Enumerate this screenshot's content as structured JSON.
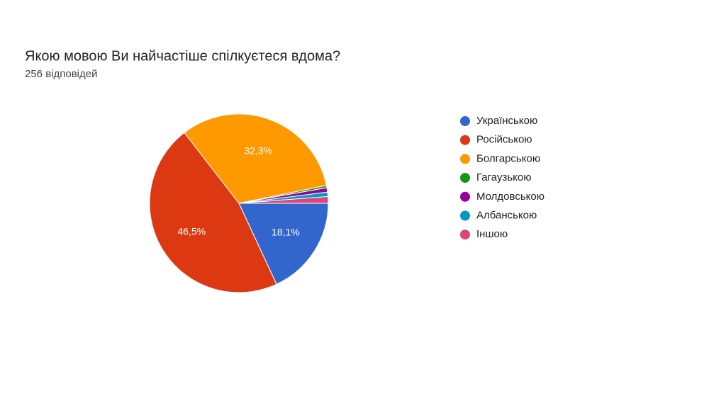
{
  "chart_data": {
    "type": "pie",
    "title": "Якою мовою Ви найчастіше спілкуєтеся вдома?",
    "subtitle": "256 відповідей",
    "categories": [
      "Українською",
      "Російською",
      "Болгарською",
      "Гагаузькою",
      "Молдовською",
      "Албанською",
      "Іншою"
    ],
    "values": [
      18.1,
      46.5,
      32.3,
      0.4,
      0.8,
      0.8,
      1.2
    ],
    "value_labels": [
      "18,1%",
      "46,5%",
      "32,3%",
      null,
      null,
      null,
      null
    ],
    "colors": [
      "#3366cc",
      "#dc3912",
      "#ff9900",
      "#109618",
      "#990099",
      "#0099c6",
      "#dd4477"
    ],
    "legend": "right"
  }
}
